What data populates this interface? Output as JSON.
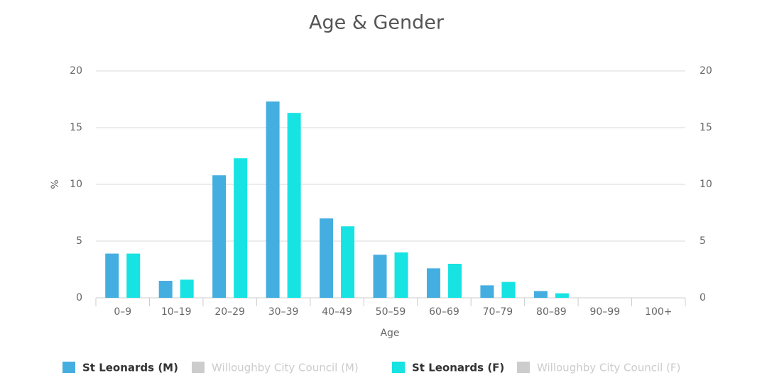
{
  "chart_data": {
    "type": "bar",
    "title": "Age & Gender",
    "xlabel": "Age",
    "ylabel": "%",
    "categories": [
      "0–9",
      "10–19",
      "20–29",
      "30–39",
      "40–49",
      "50–59",
      "60–69",
      "70–79",
      "80–89",
      "90–99",
      "100+"
    ],
    "series": [
      {
        "name": "St Leonards (M)",
        "color": "#45aee0",
        "values": [
          3.9,
          1.5,
          10.8,
          17.3,
          7.0,
          3.8,
          2.6,
          1.1,
          0.6,
          0,
          0
        ]
      },
      {
        "name": "Willoughby City Council (M)",
        "color": "#cccccc",
        "hidden": true,
        "values": [
          null,
          null,
          null,
          null,
          null,
          null,
          null,
          null,
          null,
          null,
          null
        ]
      },
      {
        "name": "St Leonards (F)",
        "color": "#17e3e3",
        "values": [
          3.9,
          1.6,
          12.3,
          16.3,
          6.3,
          4.0,
          3.0,
          1.4,
          0.4,
          0,
          0
        ]
      },
      {
        "name": "Willoughby City Council (F)",
        "color": "#cccccc",
        "hidden": true,
        "values": [
          null,
          null,
          null,
          null,
          null,
          null,
          null,
          null,
          null,
          null,
          null
        ]
      }
    ],
    "ylim": [
      0,
      20
    ],
    "yticks": [
      0,
      5,
      10,
      15,
      20
    ],
    "y2lim": [
      0,
      20
    ],
    "y2ticks": [
      0,
      5,
      10,
      15,
      20
    ],
    "grid": true,
    "legend": "bottom"
  }
}
